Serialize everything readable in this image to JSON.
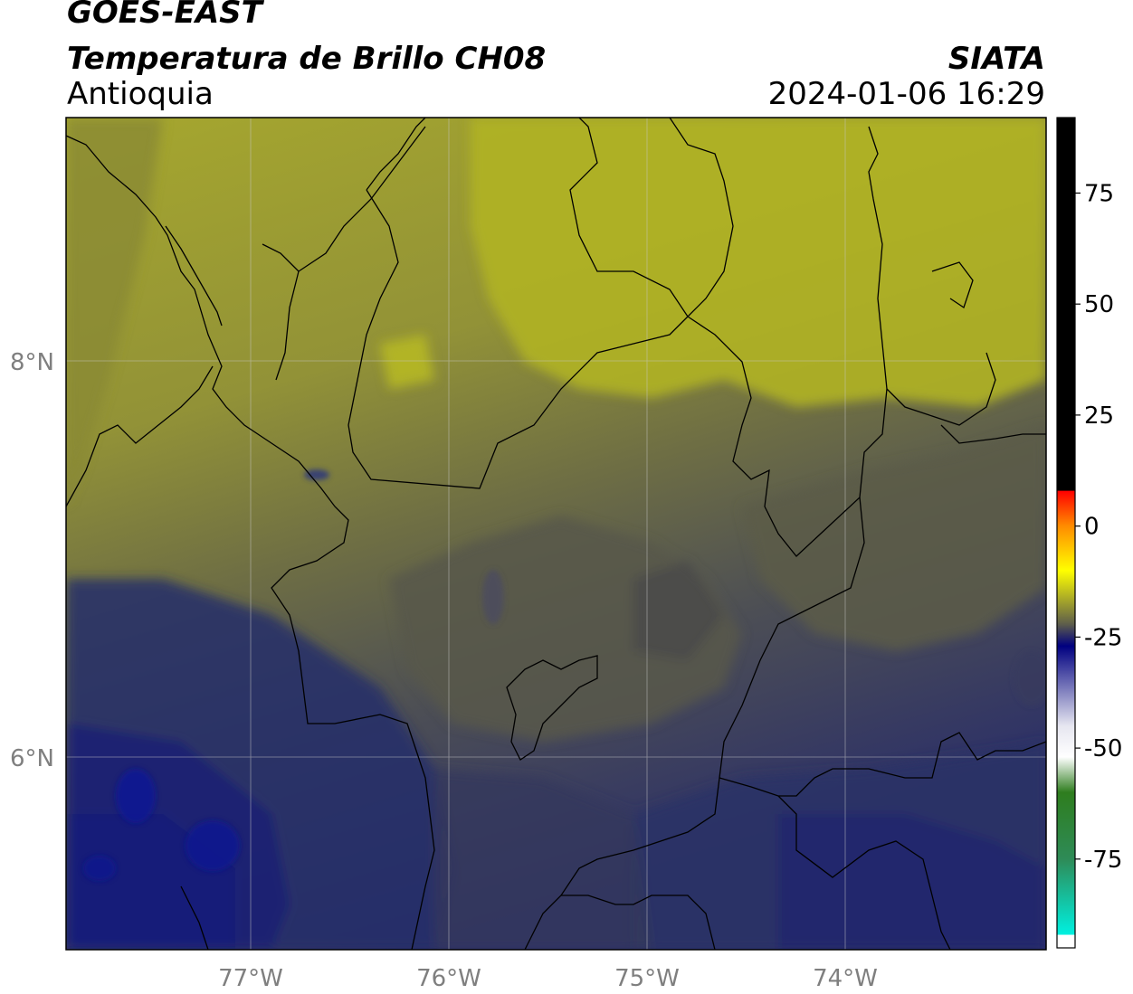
{
  "header": {
    "satellite": "GOES-EAST",
    "product": "Temperatura de Brillo CH08",
    "region": "Antioquia",
    "organization": "SIATA",
    "datetime": "2024-01-06 16:29"
  },
  "map": {
    "extent": {
      "lon": [
        -77.95,
        -73.0
      ],
      "lat": [
        5.05,
        9.25
      ]
    },
    "lat_ticks": [
      {
        "value": 8,
        "label": "8°N"
      },
      {
        "value": 6,
        "label": "6°N"
      }
    ],
    "lon_ticks": [
      {
        "value": -77,
        "label": "77°W"
      },
      {
        "value": -76,
        "label": "76°W"
      },
      {
        "value": -75,
        "label": "75°W"
      },
      {
        "value": -74,
        "label": "74°W"
      }
    ],
    "gridlines": true,
    "colors": {
      "north_field": "#a3a52c",
      "north_bright": "#b0b225",
      "mid_field": "#7d7d3c",
      "center_gray": "#575748",
      "south_field": "#3a3d5e",
      "deep_blue": "#161e6e",
      "darkest_blue": "#0f1890"
    }
  },
  "colorbar": {
    "range": [
      -95,
      92
    ],
    "ticks": [
      {
        "value": 75,
        "label": "75"
      },
      {
        "value": 50,
        "label": "50"
      },
      {
        "value": 25,
        "label": "25"
      },
      {
        "value": 0,
        "label": "0"
      },
      {
        "value": -25,
        "label": "-25"
      },
      {
        "value": -50,
        "label": "-50"
      },
      {
        "value": -75,
        "label": "-75"
      }
    ],
    "stops": [
      {
        "value": 92,
        "color": "#000000"
      },
      {
        "value": 8,
        "color": "#000000"
      },
      {
        "value": 7.9,
        "color": "#ff0000"
      },
      {
        "value": 0,
        "color": "#ff8c00"
      },
      {
        "value": -10,
        "color": "#ffff00"
      },
      {
        "value": -22,
        "color": "#5f5f4a"
      },
      {
        "value": -27,
        "color": "#000080"
      },
      {
        "value": -45,
        "color": "#e6e6f0"
      },
      {
        "value": -52,
        "color": "#ffffff"
      },
      {
        "value": -60,
        "color": "#2e7d1e"
      },
      {
        "value": -75,
        "color": "#2e8b57"
      },
      {
        "value": -92,
        "color": "#00f0e0"
      },
      {
        "value": -92.1,
        "color": "#ffffff"
      },
      {
        "value": -95,
        "color": "#ffffff"
      }
    ]
  }
}
